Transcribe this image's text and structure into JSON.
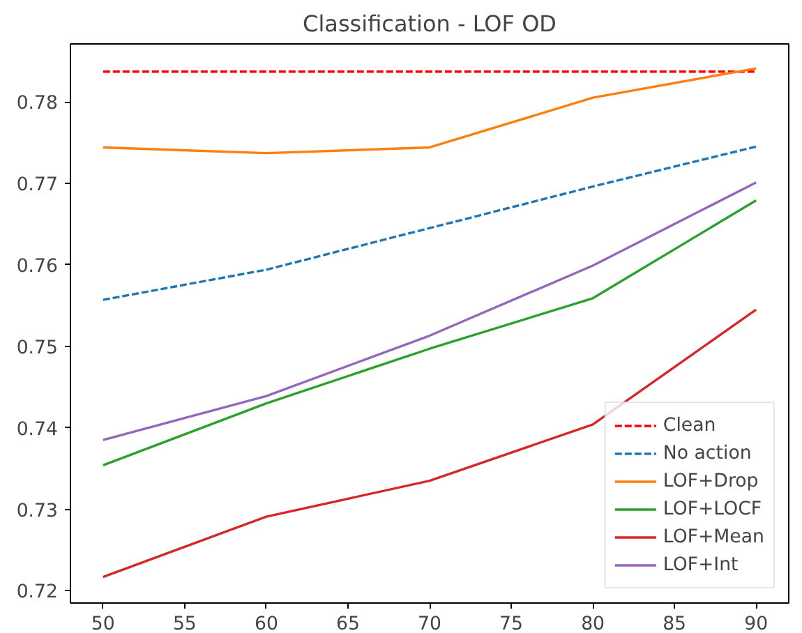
{
  "chart_data": {
    "type": "line",
    "title": "Classification - LOF OD",
    "x": [
      50,
      60,
      70,
      80,
      90
    ],
    "xlim": [
      48,
      92
    ],
    "xticks": [
      50,
      55,
      60,
      65,
      70,
      75,
      80,
      85,
      90
    ],
    "ylim": [
      0.7185,
      0.7871
    ],
    "yticks": [
      0.72,
      0.73,
      0.74,
      0.75,
      0.76,
      0.77,
      0.78
    ],
    "grid": false,
    "legend": "bottom right",
    "marker": "none",
    "series": [
      {
        "name": "Clean",
        "color": "#ff0000",
        "line_style": "dashed",
        "values": [
          0.7837,
          0.7837,
          0.7837,
          0.7837,
          0.7837
        ]
      },
      {
        "name": "No action",
        "color": "#1f77b4",
        "line_style": "dashed",
        "values": [
          0.7557,
          0.7594,
          0.7645,
          0.7696,
          0.7745
        ]
      },
      {
        "name": "LOF+Drop",
        "color": "#ff7f0e",
        "line_style": "solid",
        "values": [
          0.7744,
          0.7737,
          0.7744,
          0.7805,
          0.7841
        ]
      },
      {
        "name": "LOF+LOCF",
        "color": "#2ca02c",
        "line_style": "solid",
        "values": [
          0.7354,
          0.743,
          0.7497,
          0.7559,
          0.7679
        ]
      },
      {
        "name": "LOF+Mean",
        "color": "#d62728",
        "line_style": "solid",
        "values": [
          0.7217,
          0.7291,
          0.7335,
          0.7404,
          0.7545
        ]
      },
      {
        "name": "LOF+Int",
        "color": "#9467bd",
        "line_style": "solid",
        "values": [
          0.7385,
          0.7439,
          0.7513,
          0.7599,
          0.7701
        ]
      }
    ]
  }
}
